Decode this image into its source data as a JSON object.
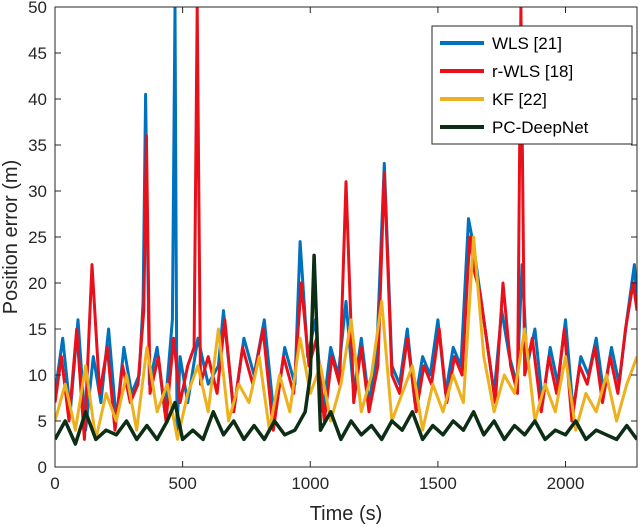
{
  "chart_data": {
    "type": "line",
    "title": "",
    "xlabel": "Time (s)",
    "ylabel": "Position error (m)",
    "xlim": [
      0,
      2280
    ],
    "ylim": [
      0,
      50
    ],
    "xticks": [
      0,
      500,
      1000,
      1500,
      2000
    ],
    "yticks": [
      0,
      5,
      10,
      15,
      20,
      25,
      30,
      35,
      40,
      45,
      50
    ],
    "grid": false,
    "legend_position": "top-right",
    "series": [
      {
        "name": "WLS [21]",
        "color": "#0072BD",
        "x": [
          0,
          30,
          60,
          90,
          120,
          150,
          180,
          210,
          240,
          270,
          300,
          330,
          345,
          355,
          370,
          400,
          430,
          460,
          470,
          478,
          490,
          520,
          560,
          600,
          640,
          660,
          700,
          740,
          780,
          820,
          860,
          900,
          940,
          960,
          990,
          1020,
          1050,
          1080,
          1110,
          1140,
          1170,
          1200,
          1230,
          1260,
          1290,
          1320,
          1350,
          1380,
          1410,
          1440,
          1470,
          1500,
          1530,
          1560,
          1590,
          1620,
          1640,
          1660,
          1690,
          1720,
          1750,
          1780,
          1810,
          1830,
          1850,
          1880,
          1910,
          1940,
          1970,
          2000,
          2030,
          2060,
          2090,
          2120,
          2150,
          2180,
          2210,
          2240,
          2270,
          2280
        ],
        "y": [
          8,
          14,
          6,
          16,
          4,
          12,
          7,
          15,
          5,
          13,
          8,
          10,
          18,
          40.5,
          9,
          13,
          6,
          16,
          50,
          4,
          12,
          7,
          14,
          9,
          11,
          17,
          6,
          14,
          10,
          16,
          5,
          13,
          9,
          24.5,
          12,
          16,
          6,
          13,
          10,
          18,
          8,
          14,
          7,
          12,
          33,
          11,
          9,
          15,
          7,
          12,
          10,
          16,
          8,
          13,
          11,
          27,
          24,
          20,
          14,
          8,
          17,
          12,
          9,
          22,
          11,
          15,
          7,
          13,
          9,
          16,
          6,
          12,
          10,
          14,
          8,
          13,
          9,
          16,
          22,
          18
        ]
      },
      {
        "name": "r-WLS [18]",
        "color": "#E8101A",
        "x": [
          0,
          25,
          55,
          85,
          115,
          145,
          175,
          205,
          235,
          265,
          295,
          325,
          348,
          358,
          372,
          405,
          435,
          465,
          490,
          520,
          545,
          557,
          570,
          600,
          635,
          665,
          700,
          735,
          775,
          815,
          855,
          895,
          935,
          965,
          995,
          1025,
          1055,
          1085,
          1115,
          1140,
          1170,
          1200,
          1230,
          1265,
          1290,
          1320,
          1350,
          1380,
          1415,
          1445,
          1475,
          1505,
          1535,
          1565,
          1595,
          1625,
          1645,
          1665,
          1695,
          1725,
          1755,
          1785,
          1812,
          1825,
          1840,
          1870,
          1905,
          1935,
          1965,
          1995,
          2025,
          2055,
          2085,
          2115,
          2145,
          2175,
          2205,
          2235,
          2265,
          2280
        ],
        "y": [
          7,
          12,
          5,
          15,
          3,
          22,
          8,
          13,
          4,
          11,
          7,
          9,
          17,
          36,
          8,
          12,
          5,
          14,
          7,
          11,
          13,
          50,
          9,
          12,
          8,
          16,
          6,
          13,
          9,
          15,
          4,
          12,
          8,
          20,
          11,
          14,
          5,
          12,
          9,
          31,
          7,
          13,
          6,
          11,
          32,
          10,
          8,
          14,
          6,
          11,
          9,
          15,
          7,
          12,
          10,
          25,
          21,
          19,
          13,
          7,
          20,
          11,
          8,
          50,
          10,
          14,
          6,
          12,
          8,
          15,
          5,
          11,
          9,
          13,
          7,
          12,
          8,
          15,
          20,
          17
        ]
      },
      {
        "name": "KF [22]",
        "color": "#EDB120",
        "x": [
          0,
          40,
          80,
          120,
          160,
          200,
          240,
          280,
          320,
          360,
          400,
          440,
          480,
          520,
          560,
          600,
          640,
          680,
          720,
          760,
          800,
          840,
          880,
          920,
          960,
          1000,
          1040,
          1080,
          1120,
          1160,
          1200,
          1240,
          1280,
          1320,
          1360,
          1400,
          1440,
          1480,
          1520,
          1560,
          1600,
          1640,
          1680,
          1720,
          1760,
          1800,
          1840,
          1880,
          1920,
          1960,
          2000,
          2040,
          2080,
          2120,
          2160,
          2200,
          2240,
          2280
        ],
        "y": [
          5,
          9,
          4,
          11,
          3,
          8,
          5,
          10,
          4,
          13,
          6,
          9,
          3,
          8,
          11,
          6,
          15,
          5,
          9,
          7,
          12,
          4,
          10,
          6,
          14,
          8,
          11,
          5,
          9,
          16,
          6,
          10,
          18,
          5,
          8,
          11,
          4,
          9,
          6,
          10,
          7,
          25,
          12,
          6,
          10,
          8,
          15,
          5,
          9,
          6,
          12,
          4,
          8,
          6,
          10,
          5,
          9,
          12
        ]
      },
      {
        "name": "PC-DeepNet",
        "color": "#0B2E14",
        "x": [
          0,
          40,
          80,
          120,
          160,
          200,
          240,
          280,
          320,
          360,
          400,
          440,
          470,
          500,
          540,
          580,
          620,
          660,
          700,
          740,
          780,
          820,
          860,
          900,
          940,
          980,
          1000,
          1015,
          1040,
          1080,
          1120,
          1160,
          1200,
          1240,
          1280,
          1320,
          1360,
          1400,
          1440,
          1480,
          1520,
          1560,
          1600,
          1640,
          1680,
          1720,
          1760,
          1800,
          1840,
          1880,
          1920,
          1960,
          2000,
          2040,
          2080,
          2120,
          2160,
          2200,
          2240,
          2280
        ],
        "y": [
          3,
          5,
          2.5,
          6,
          3,
          4,
          3.5,
          5,
          3,
          4.5,
          3,
          5,
          7,
          3,
          4,
          3,
          6,
          3.5,
          5,
          3,
          4.5,
          3,
          5,
          3.5,
          4,
          6,
          10,
          23,
          4,
          6,
          3,
          5,
          3.5,
          4.5,
          3,
          5,
          4,
          6,
          3,
          4.5,
          3.5,
          5,
          4,
          6,
          3.5,
          5,
          3,
          4.5,
          3.5,
          5,
          3,
          4,
          3.5,
          5,
          3,
          4,
          3.5,
          3,
          4.5,
          3
        ]
      }
    ]
  }
}
